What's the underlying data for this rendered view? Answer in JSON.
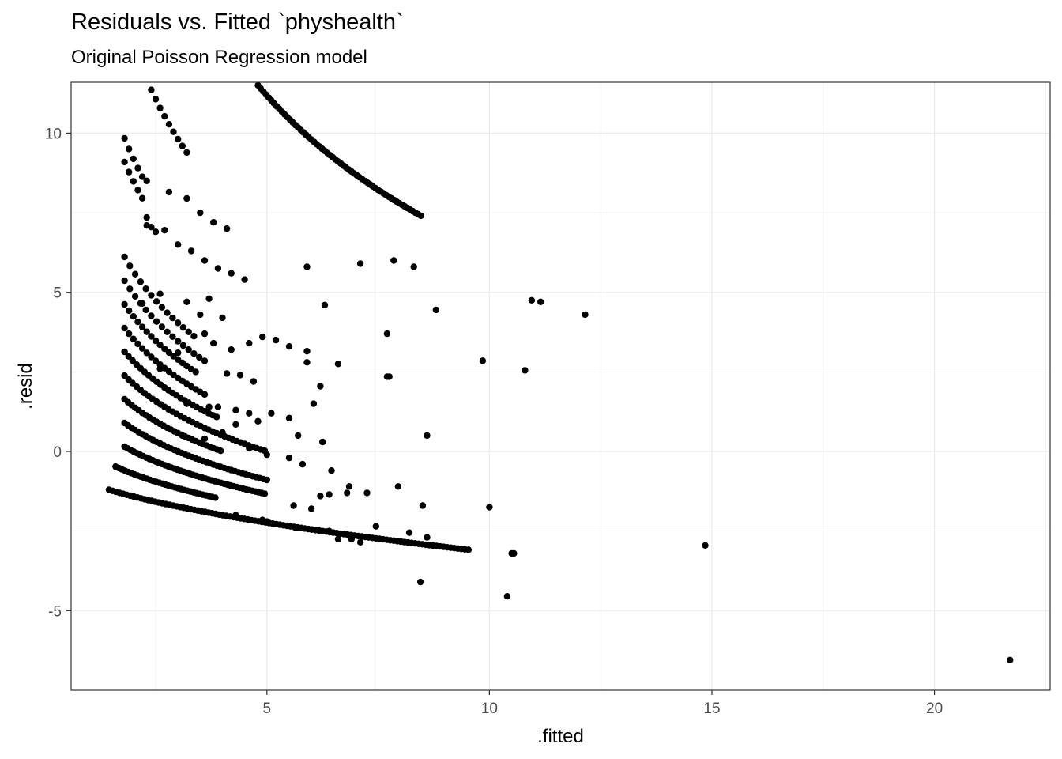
{
  "chart_data": {
    "type": "scatter",
    "title": "Residuals vs. Fitted `physhealth`",
    "subtitle": "Original Poisson Regression model",
    "xlabel": ".fitted",
    "ylabel": ".resid",
    "xlim": [
      0.6,
      22.6
    ],
    "ylim": [
      -7.5,
      11.6
    ],
    "x_ticks": [
      5,
      10,
      15,
      20
    ],
    "x_tick_labels": [
      "5",
      "10",
      "15",
      "20"
    ],
    "y_ticks": [
      -5,
      0,
      5,
      10
    ],
    "y_tick_labels": [
      "-5",
      "0",
      "5",
      "10"
    ],
    "grid": true,
    "legend": "none",
    "point_color": "#000000",
    "curves": [
      {
        "k": 0,
        "x_from": 1.45,
        "x_to": 9.6,
        "step": 0.08
      },
      {
        "k": 1,
        "x_from": 1.6,
        "x_to": 3.9,
        "step": 0.07
      },
      {
        "k": 2,
        "x_from": 1.8,
        "x_to": 5.0,
        "step": 0.07
      },
      {
        "k": 3,
        "x_from": 1.8,
        "x_to": 5.0,
        "step": 0.08
      },
      {
        "k": 4,
        "x_from": 1.8,
        "x_to": 4.0,
        "step": 0.08
      },
      {
        "k": 5,
        "x_from": 1.8,
        "x_to": 5.0,
        "step": 0.09
      },
      {
        "k": 6,
        "x_from": 1.8,
        "x_to": 3.9,
        "step": 0.09
      },
      {
        "k": 7,
        "x_from": 1.8,
        "x_to": 3.6,
        "step": 0.1
      },
      {
        "k": 8,
        "x_from": 1.8,
        "x_to": 3.3,
        "step": 0.1
      },
      {
        "k": 9,
        "x_from": 1.8,
        "x_to": 3.6,
        "step": 0.12
      },
      {
        "k": 10,
        "x_from": 1.8,
        "x_to": 3.4,
        "step": 0.12
      },
      {
        "k": 14,
        "x_from": 1.8,
        "x_to": 2.2,
        "step": 0.1
      },
      {
        "k": 15,
        "x_from": 1.8,
        "x_to": 2.2,
        "step": 0.1
      },
      {
        "k": 20,
        "x_from": 1.8,
        "x_to": 3.2,
        "step": 0.1
      },
      {
        "k": 25,
        "x_from": 1.8,
        "x_to": 3.0,
        "step": 0.1
      },
      {
        "k": 30,
        "x_from": 1.8,
        "x_to": 8.5,
        "step": 0.06
      }
    ],
    "points": [
      [
        2.3,
        8.5
      ],
      [
        2.8,
        8.15
      ],
      [
        3.2,
        7.95
      ],
      [
        3.5,
        7.5
      ],
      [
        3.8,
        7.2
      ],
      [
        4.1,
        7.0
      ],
      [
        2.3,
        7.35
      ],
      [
        2.4,
        7.05
      ],
      [
        2.5,
        6.9
      ],
      [
        2.3,
        7.1
      ],
      [
        2.7,
        6.95
      ],
      [
        3.0,
        6.5
      ],
      [
        3.3,
        6.3
      ],
      [
        3.6,
        6.0
      ],
      [
        3.9,
        5.75
      ],
      [
        4.2,
        5.6
      ],
      [
        4.5,
        5.4
      ],
      [
        5.9,
        5.8
      ],
      [
        7.1,
        5.9
      ],
      [
        7.85,
        6.0
      ],
      [
        8.3,
        5.8
      ],
      [
        2.2,
        4.65
      ],
      [
        2.6,
        4.95
      ],
      [
        3.2,
        4.7
      ],
      [
        3.5,
        4.3
      ],
      [
        3.7,
        4.8
      ],
      [
        4.0,
        4.2
      ],
      [
        6.3,
        4.6
      ],
      [
        8.8,
        4.45
      ],
      [
        10.95,
        4.75
      ],
      [
        11.15,
        4.7
      ],
      [
        12.15,
        4.3
      ],
      [
        3.8,
        3.4
      ],
      [
        3.6,
        3.7
      ],
      [
        3.0,
        3.1
      ],
      [
        4.2,
        3.2
      ],
      [
        4.6,
        3.4
      ],
      [
        4.9,
        3.6
      ],
      [
        5.2,
        3.5
      ],
      [
        5.5,
        3.3
      ],
      [
        5.9,
        3.15
      ],
      [
        7.7,
        3.7
      ],
      [
        5.9,
        2.8
      ],
      [
        6.6,
        2.75
      ],
      [
        9.85,
        2.85
      ],
      [
        10.8,
        2.55
      ],
      [
        7.7,
        2.35
      ],
      [
        7.75,
        2.35
      ],
      [
        2.6,
        2.6
      ],
      [
        3.4,
        2.5
      ],
      [
        4.1,
        2.45
      ],
      [
        4.4,
        2.4
      ],
      [
        4.7,
        2.2
      ],
      [
        6.2,
        2.05
      ],
      [
        3.2,
        1.5
      ],
      [
        3.7,
        1.4
      ],
      [
        3.9,
        1.4
      ],
      [
        4.3,
        1.3
      ],
      [
        4.6,
        1.2
      ],
      [
        5.1,
        1.2
      ],
      [
        5.5,
        1.05
      ],
      [
        6.05,
        1.5
      ],
      [
        3.1,
        0.5
      ],
      [
        3.6,
        0.4
      ],
      [
        4.0,
        0.6
      ],
      [
        4.3,
        0.85
      ],
      [
        4.8,
        0.95
      ],
      [
        5.7,
        0.5
      ],
      [
        6.25,
        0.3
      ],
      [
        8.6,
        0.5
      ],
      [
        4.6,
        0.1
      ],
      [
        5.0,
        -0.1
      ],
      [
        5.5,
        -0.2
      ],
      [
        5.8,
        -0.4
      ],
      [
        6.45,
        -0.6
      ],
      [
        7.95,
        -1.1
      ],
      [
        5.6,
        -1.7
      ],
      [
        6.0,
        -1.8
      ],
      [
        6.2,
        -1.4
      ],
      [
        6.4,
        -1.35
      ],
      [
        6.8,
        -1.3
      ],
      [
        7.25,
        -1.3
      ],
      [
        6.85,
        -1.1
      ],
      [
        8.5,
        -1.7
      ],
      [
        10.0,
        -1.75
      ],
      [
        4.3,
        -2.0
      ],
      [
        4.9,
        -2.15
      ],
      [
        5.0,
        -2.2
      ],
      [
        5.65,
        -2.4
      ],
      [
        6.0,
        -2.45
      ],
      [
        6.4,
        -2.5
      ],
      [
        6.6,
        -2.75
      ],
      [
        6.9,
        -2.75
      ],
      [
        7.1,
        -2.85
      ],
      [
        7.45,
        -2.35
      ],
      [
        8.2,
        -2.55
      ],
      [
        8.6,
        -2.7
      ],
      [
        8.45,
        -4.1
      ],
      [
        10.4,
        -4.55
      ],
      [
        10.5,
        -3.2
      ],
      [
        10.55,
        -3.2
      ],
      [
        14.85,
        -2.95
      ],
      [
        21.7,
        -6.55
      ]
    ]
  }
}
